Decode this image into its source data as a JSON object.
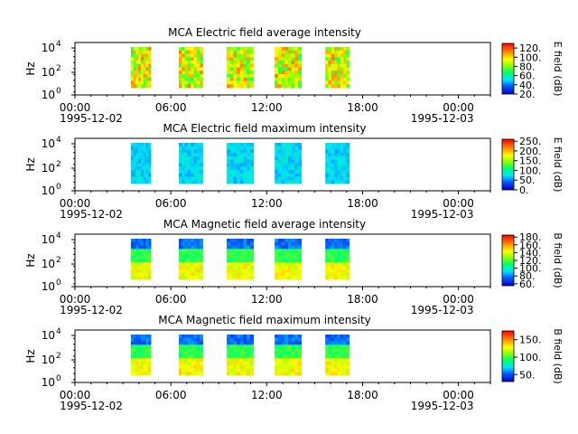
{
  "chart_data": [
    {
      "type": "heatmap",
      "title": "MCA  Electric field average intensity",
      "ylabel": "Hz",
      "y_scale": "log",
      "y_ticks": [
        {
          "sup": "0",
          "label": "10^0"
        },
        {
          "sup": "2",
          "label": "10^2"
        },
        {
          "sup": "4",
          "label": "10^4"
        }
      ],
      "colorbar": {
        "label": "E field (dB)",
        "range": [
          20,
          130
        ],
        "ticks": [
          "20.",
          "40.",
          "60.",
          "80.",
          "100.",
          "120."
        ]
      },
      "palette": "rainbow",
      "bursts": [
        {
          "start": "03:30",
          "end": "04:45",
          "level": "high"
        },
        {
          "start": "06:30",
          "end": "08:00",
          "level": "high"
        },
        {
          "start": "09:30",
          "end": "11:10",
          "level": "high"
        },
        {
          "start": "12:30",
          "end": "14:10",
          "level": "high"
        },
        {
          "start": "15:40",
          "end": "17:10",
          "level": "high"
        }
      ]
    },
    {
      "type": "heatmap",
      "title": "MCA  Electric field maximum intensity",
      "ylabel": "Hz",
      "y_scale": "log",
      "y_ticks": [
        {
          "sup": "0",
          "label": "10^0"
        },
        {
          "sup": "2",
          "label": "10^2"
        },
        {
          "sup": "4",
          "label": "10^4"
        }
      ],
      "colorbar": {
        "label": "E field (dB)",
        "range": [
          0,
          260
        ],
        "ticks": [
          "0.",
          "50.",
          "100.",
          "150.",
          "200.",
          "250."
        ]
      },
      "palette": "rainbow",
      "bursts": [
        {
          "start": "03:30",
          "end": "04:45",
          "level": "low"
        },
        {
          "start": "06:30",
          "end": "08:00",
          "level": "low"
        },
        {
          "start": "09:30",
          "end": "11:10",
          "level": "low"
        },
        {
          "start": "12:30",
          "end": "14:10",
          "level": "low"
        },
        {
          "start": "15:40",
          "end": "17:10",
          "level": "low"
        }
      ]
    },
    {
      "type": "heatmap",
      "title": "MCA  Magnetic field average intensity",
      "ylabel": "Hz",
      "y_scale": "log",
      "y_ticks": [
        {
          "sup": "0",
          "label": "10^0"
        },
        {
          "sup": "2",
          "label": "10^2"
        },
        {
          "sup": "4",
          "label": "10^4"
        }
      ],
      "colorbar": {
        "label": "B field (dB)",
        "range": [
          55,
          185
        ],
        "ticks": [
          "60.",
          "80.",
          "100.",
          "120.",
          "140.",
          "160.",
          "180."
        ]
      },
      "palette": "rainbow",
      "bursts": [
        {
          "start": "03:30",
          "end": "04:45",
          "level": "band"
        },
        {
          "start": "06:30",
          "end": "08:00",
          "level": "band"
        },
        {
          "start": "09:30",
          "end": "11:10",
          "level": "band"
        },
        {
          "start": "12:30",
          "end": "14:10",
          "level": "band"
        },
        {
          "start": "15:40",
          "end": "17:10",
          "level": "band"
        }
      ]
    },
    {
      "type": "heatmap",
      "title": "MCA  Magnetic field maximum intensity",
      "ylabel": "Hz",
      "y_scale": "log",
      "y_ticks": [
        {
          "sup": "0",
          "label": "10^0"
        },
        {
          "sup": "2",
          "label": "10^2"
        },
        {
          "sup": "4",
          "label": "10^4"
        }
      ],
      "colorbar": {
        "label": "B field (dB)",
        "range": [
          30,
          175
        ],
        "ticks": [
          "50.",
          "100.",
          "150."
        ]
      },
      "palette": "rainbow",
      "bursts": [
        {
          "start": "03:30",
          "end": "04:45",
          "level": "band"
        },
        {
          "start": "06:30",
          "end": "08:00",
          "level": "band"
        },
        {
          "start": "09:30",
          "end": "11:10",
          "level": "band"
        },
        {
          "start": "12:30",
          "end": "14:10",
          "level": "band"
        },
        {
          "start": "15:40",
          "end": "17:10",
          "level": "band"
        }
      ]
    }
  ],
  "x_axis": {
    "range": [
      "1995-12-02 00:00",
      "1995-12-03 02:00"
    ],
    "major_ticks": [
      {
        "time": "00:00",
        "date": "1995-12-02"
      },
      {
        "time": "06:00",
        "date": ""
      },
      {
        "time": "12:00",
        "date": ""
      },
      {
        "time": "18:00",
        "date": ""
      },
      {
        "time": "00:00",
        "date": "1995-12-03"
      }
    ]
  }
}
